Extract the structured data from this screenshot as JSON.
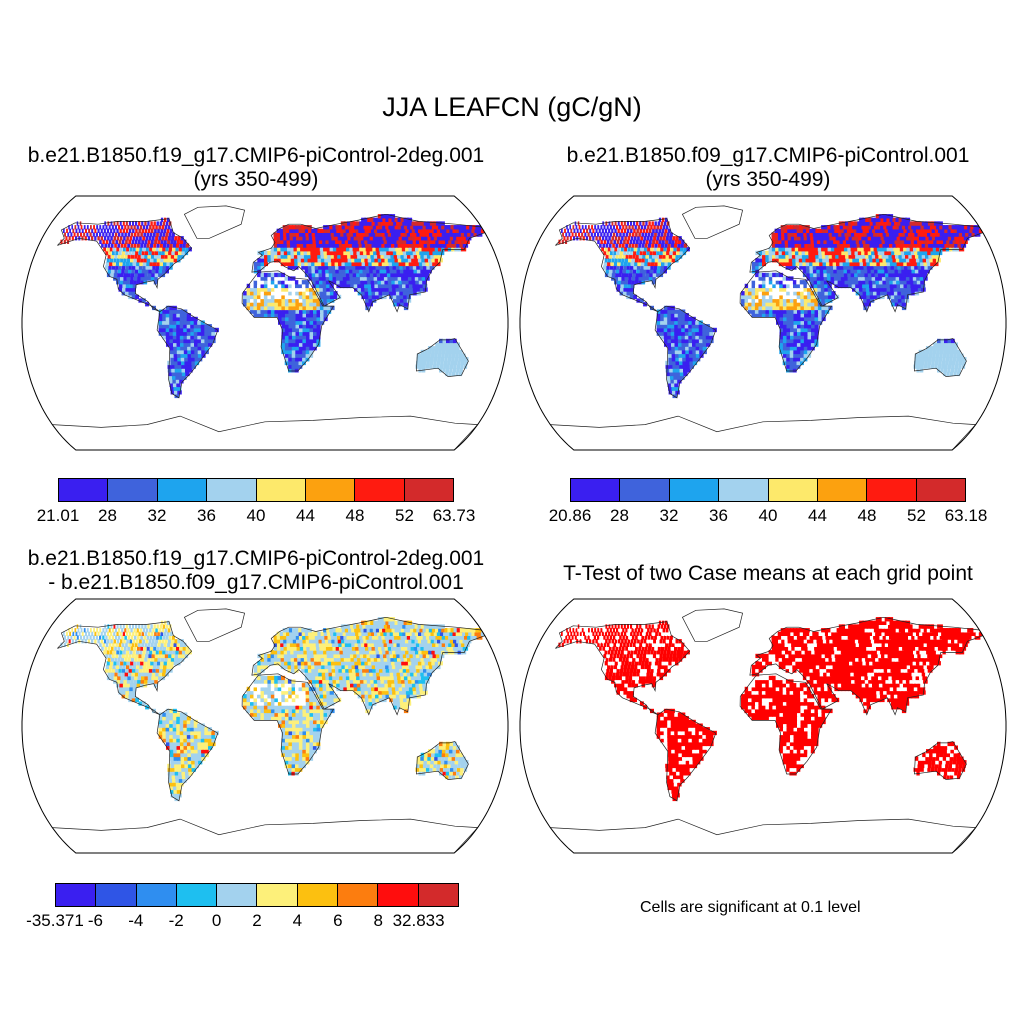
{
  "title": "JJA LEAFCN (gC/gN)",
  "panels": {
    "case1": {
      "title": "b.e21.B1850.f19_g17.CMIP6-piControl-2deg.001",
      "subtitle": "(yrs 350-499)"
    },
    "case2": {
      "title": "b.e21.B1850.f09_g17.CMIP6-piControl.001",
      "subtitle": "(yrs 350-499)"
    },
    "diff": {
      "title_line1": "b.e21.B1850.f19_g17.CMIP6-piControl-2deg.001",
      "title_line2": "- b.e21.B1850.f09_g17.CMIP6-piControl.001"
    },
    "ttest": {
      "title": "T-Test of two Case means at each grid point",
      "note": "Cells are significant at 0.1 level"
    }
  },
  "colorbars": {
    "case1": {
      "labels": [
        "21.01",
        "28",
        "32",
        "36",
        "40",
        "44",
        "48",
        "52",
        "63.73"
      ],
      "colors": [
        "#3a1ff0",
        "#3f63dc",
        "#1ea4ee",
        "#a3d2ee",
        "#fde96b",
        "#fca10f",
        "#ff1b10",
        "#d32a2b"
      ]
    },
    "case2": {
      "labels": [
        "20.86",
        "28",
        "32",
        "36",
        "40",
        "44",
        "48",
        "52",
        "63.18"
      ],
      "colors": [
        "#3a1ff0",
        "#3f63dc",
        "#1ea4ee",
        "#a3d2ee",
        "#fde96b",
        "#fca10f",
        "#ff1b10",
        "#d32a2b"
      ]
    },
    "diff": {
      "labels": [
        "-35.371",
        "-6",
        "-4",
        "-2",
        "0",
        "2",
        "4",
        "6",
        "8",
        "32.833"
      ],
      "colors": [
        "#3a1ff0",
        "#2f55e6",
        "#2f8ef0",
        "#1ebff0",
        "#a3d2ee",
        "#fdf07a",
        "#fcc010",
        "#fc7d0f",
        "#ff0d0d",
        "#d32a2b"
      ]
    }
  },
  "map_palette": {
    "land_fill_case": "#3f4fe0",
    "ocean": "#ffffff",
    "coast": "#222222",
    "significant": "#ff0000"
  }
}
